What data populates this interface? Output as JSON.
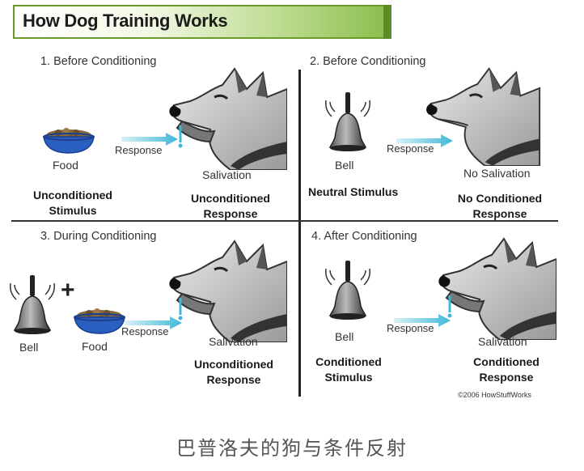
{
  "title": "How Dog Training Works",
  "caption": "巴普洛夫的狗与条件反射",
  "copyright": "©2006 HowStuffWorks",
  "panels": {
    "p1": {
      "heading": "1. Before Conditioning",
      "stimulus": "Food",
      "arrow": "Response",
      "result": "Salivation",
      "stim_type_1": "Unconditioned",
      "stim_type_2": "Stimulus",
      "resp_type_1": "Unconditioned",
      "resp_type_2": "Response"
    },
    "p2": {
      "heading": "2. Before Conditioning",
      "stimulus": "Bell",
      "arrow": "Response",
      "result": "No Salivation",
      "stim_type": "Neutral Stimulus",
      "resp_type_1": "No Conditioned",
      "resp_type_2": "Response"
    },
    "p3": {
      "heading": "3. During Conditioning",
      "stimulus_a": "Bell",
      "plus": "+",
      "stimulus_b": "Food",
      "arrow": "Response",
      "result": "Salivation",
      "resp_type_1": "Unconditioned",
      "resp_type_2": "Response"
    },
    "p4": {
      "heading": "4. After Conditioning",
      "stimulus": "Bell",
      "arrow": "Response",
      "result": "Salivation",
      "stim_type_1": "Conditioned",
      "stim_type_2": "Stimulus",
      "resp_type_1": "Conditioned",
      "resp_type_2": "Response"
    }
  },
  "colors": {
    "banner_green": "#8cbf4e",
    "arrow_cyan": "#3fb8d8",
    "collar_blue": "#2a8fd0",
    "bowl_blue": "#2a5fc0",
    "food_brown": "#8a6a3a"
  }
}
